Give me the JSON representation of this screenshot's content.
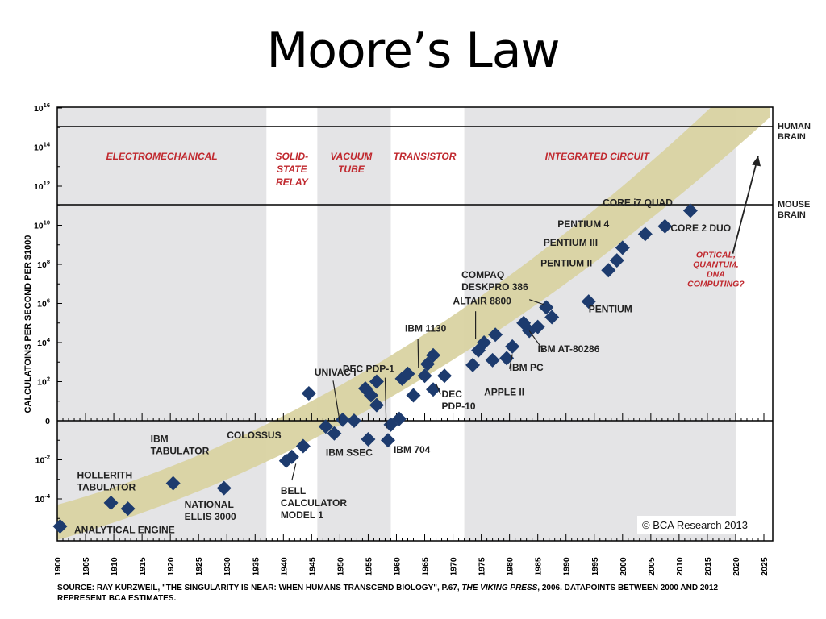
{
  "slide": {
    "title": "Moore’s Law"
  },
  "chart_data": {
    "type": "scatter",
    "ylabel": "CALCULATOINS PER SECOND PER $1000",
    "y_scale": "log",
    "xlim": [
      1900,
      2025
    ],
    "ylim_log10": [
      -6,
      16
    ],
    "x_ticks": [
      1900,
      1905,
      1910,
      1915,
      1920,
      1925,
      1930,
      1935,
      1940,
      1945,
      1950,
      1955,
      1960,
      1965,
      1970,
      1975,
      1980,
      1985,
      1990,
      1995,
      2000,
      2005,
      2010,
      2015,
      2020,
      2025
    ],
    "y_ticks": [
      {
        "exp": 16,
        "label": "10",
        "sup": "16"
      },
      {
        "exp": 14,
        "label": "10",
        "sup": "14"
      },
      {
        "exp": 12,
        "label": "10",
        "sup": "12"
      },
      {
        "exp": 10,
        "label": "10",
        "sup": "10"
      },
      {
        "exp": 8,
        "label": "10",
        "sup": "8"
      },
      {
        "exp": 6,
        "label": "10",
        "sup": "6"
      },
      {
        "exp": 4,
        "label": "10",
        "sup": "4"
      },
      {
        "exp": 2,
        "label": "10",
        "sup": "2"
      },
      {
        "exp": 0,
        "label": "0",
        "sup": ""
      },
      {
        "exp": -2,
        "label": "10",
        "sup": "-2"
      },
      {
        "exp": -4,
        "label": "10",
        "sup": "-4"
      }
    ],
    "eras": [
      {
        "name": "ELECTROMECHANICAL",
        "lines": [
          "ELECTROMECHANICAL"
        ],
        "from": 1900,
        "to": 1937,
        "shaded": true
      },
      {
        "name": "SOLID-STATE RELAY",
        "lines": [
          "SOLID-",
          "STATE",
          "RELAY"
        ],
        "from": 1937,
        "to": 1946,
        "shaded": false
      },
      {
        "name": "VACUUM TUBE",
        "lines": [
          "VACUUM",
          "TUBE"
        ],
        "from": 1946,
        "to": 1959,
        "shaded": true
      },
      {
        "name": "TRANSISTOR",
        "lines": [
          "TRANSISTOR"
        ],
        "from": 1959,
        "to": 1972,
        "shaded": false
      },
      {
        "name": "INTEGRATED CIRCUIT",
        "lines": [
          "INTEGRATED CIRCUIT"
        ],
        "from": 1972,
        "to": 2020,
        "shaded": true
      }
    ],
    "reference_lines": [
      {
        "name": "HUMAN BRAIN",
        "lines": [
          "HUMAN",
          "BRAIN"
        ],
        "log10": 15.05
      },
      {
        "name": "MOUSE BRAIN",
        "lines": [
          "MOUSE",
          "BRAIN"
        ],
        "log10": 11.05
      }
    ],
    "points": [
      {
        "x": 1900.5,
        "log10": -5.4
      },
      {
        "x": 1909.5,
        "log10": -4.2
      },
      {
        "x": 1912.5,
        "log10": -4.5
      },
      {
        "x": 1920.5,
        "log10": -3.2
      },
      {
        "x": 1929.5,
        "log10": -3.45
      },
      {
        "x": 1940.5,
        "log10": -2.05
      },
      {
        "x": 1941.5,
        "log10": -1.85
      },
      {
        "x": 1943.5,
        "log10": -1.3
      },
      {
        "x": 1944.5,
        "log10": 1.4
      },
      {
        "x": 1947.5,
        "log10": -0.3
      },
      {
        "x": 1949.0,
        "log10": -0.65
      },
      {
        "x": 1950.5,
        "log10": 0.05
      },
      {
        "x": 1952.5,
        "log10": 0.0
      },
      {
        "x": 1954.5,
        "log10": 1.65
      },
      {
        "x": 1955.0,
        "log10": -0.95
      },
      {
        "x": 1955.5,
        "log10": 1.3
      },
      {
        "x": 1956.5,
        "log10": 2.0
      },
      {
        "x": 1956.5,
        "log10": 0.8
      },
      {
        "x": 1958.5,
        "log10": -1.0
      },
      {
        "x": 1959.0,
        "log10": -0.2
      },
      {
        "x": 1960.5,
        "log10": 0.1
      },
      {
        "x": 1961.0,
        "log10": 2.15
      },
      {
        "x": 1962.0,
        "log10": 2.4
      },
      {
        "x": 1963.0,
        "log10": 1.3
      },
      {
        "x": 1965.0,
        "log10": 2.3
      },
      {
        "x": 1965.5,
        "log10": 2.9
      },
      {
        "x": 1966.5,
        "log10": 3.35
      },
      {
        "x": 1966.5,
        "log10": 1.6
      },
      {
        "x": 1968.5,
        "log10": 2.3
      },
      {
        "x": 1973.5,
        "log10": 2.85
      },
      {
        "x": 1974.5,
        "log10": 3.6
      },
      {
        "x": 1975.5,
        "log10": 4.0
      },
      {
        "x": 1977.0,
        "log10": 3.1
      },
      {
        "x": 1977.5,
        "log10": 4.4
      },
      {
        "x": 1979.5,
        "log10": 3.2
      },
      {
        "x": 1980.5,
        "log10": 3.8
      },
      {
        "x": 1982.5,
        "log10": 5.0
      },
      {
        "x": 1983.5,
        "log10": 4.6
      },
      {
        "x": 1985.0,
        "log10": 4.8
      },
      {
        "x": 1986.5,
        "log10": 5.8
      },
      {
        "x": 1987.5,
        "log10": 5.3
      },
      {
        "x": 1994.0,
        "log10": 6.1
      },
      {
        "x": 1997.5,
        "log10": 7.7
      },
      {
        "x": 1999.0,
        "log10": 8.2
      },
      {
        "x": 2000.0,
        "log10": 8.85
      },
      {
        "x": 2004.0,
        "log10": 9.55
      },
      {
        "x": 2007.5,
        "log10": 9.95
      },
      {
        "x": 2012.0,
        "log10": 10.75
      }
    ],
    "labels": [
      {
        "lines": [
          "ANALYTICAL ENGINE"
        ],
        "x": 1903.0,
        "log10": -5.75,
        "anchor": "start",
        "color": "dark"
      },
      {
        "lines": [
          "HOLLERITH",
          "TABULATOR"
        ],
        "x": 1903.5,
        "log10": -2.95,
        "anchor": "start",
        "color": "dark"
      },
      {
        "lines": [
          "IBM",
          "TABULATOR"
        ],
        "x": 1916.5,
        "log10": -1.1,
        "anchor": "start",
        "color": "dark"
      },
      {
        "lines": [
          "NATIONAL",
          "ELLIS 3000"
        ],
        "x": 1922.5,
        "log10": -4.45,
        "anchor": "start",
        "color": "dark"
      },
      {
        "lines": [
          "COLOSSUS"
        ],
        "x": 1930.0,
        "log10": -0.9,
        "anchor": "start",
        "color": "dark"
      },
      {
        "lines": [
          "BELL",
          "CALCULATOR",
          "MODEL 1"
        ],
        "x": 1939.5,
        "log10": -3.75,
        "anchor": "start",
        "color": "dark"
      },
      {
        "lines": [
          "UNIVAC I"
        ],
        "x": 1945.5,
        "log10": 2.3,
        "anchor": "start",
        "color": "dark"
      },
      {
        "lines": [
          "IBM SSEC"
        ],
        "x": 1947.5,
        "log10": -1.8,
        "anchor": "start",
        "color": "dark"
      },
      {
        "lines": [
          "DEC PDP-1"
        ],
        "x": 1950.5,
        "log10": 2.5,
        "anchor": "start",
        "color": "dark"
      },
      {
        "lines": [
          "IBM 704"
        ],
        "x": 1959.5,
        "log10": -1.65,
        "anchor": "start",
        "color": "dark"
      },
      {
        "lines": [
          "IBM 1130"
        ],
        "x": 1961.5,
        "log10": 4.55,
        "anchor": "start",
        "color": "dark"
      },
      {
        "lines": [
          "DEC",
          "PDP-10"
        ],
        "x": 1968.0,
        "log10": 1.2,
        "anchor": "start",
        "color": "dark"
      },
      {
        "lines": [
          "ALTAIR 8800"
        ],
        "x": 1970.0,
        "log10": 5.95,
        "anchor": "start",
        "color": "dark"
      },
      {
        "lines": [
          "COMPAQ",
          "DESKPRO 386"
        ],
        "x": 1971.5,
        "log10": 7.3,
        "anchor": "start",
        "color": "dark"
      },
      {
        "lines": [
          "IBM AT-80286"
        ],
        "x": 1985.0,
        "log10": 3.5,
        "anchor": "start",
        "color": "dark"
      },
      {
        "lines": [
          "IBM PC"
        ],
        "x": 1980.0,
        "log10": 2.55,
        "anchor": "start",
        "color": "dark"
      },
      {
        "lines": [
          "APPLE II"
        ],
        "x": 1975.5,
        "log10": 1.3,
        "anchor": "start",
        "color": "dark"
      },
      {
        "lines": [
          "PENTIUM"
        ],
        "x": 1994.0,
        "log10": 5.55,
        "anchor": "start",
        "color": "dark"
      },
      {
        "lines": [
          "PENTIUM II"
        ],
        "x": 1985.5,
        "log10": 7.9,
        "anchor": "start",
        "color": "dark"
      },
      {
        "lines": [
          "PENTIUM III"
        ],
        "x": 1986.0,
        "log10": 8.95,
        "anchor": "start",
        "color": "dark"
      },
      {
        "lines": [
          "PENTIUM 4"
        ],
        "x": 1988.5,
        "log10": 9.9,
        "anchor": "start",
        "color": "dark"
      },
      {
        "lines": [
          "CORE i7 QUAD"
        ],
        "x": 1996.5,
        "log10": 11.0,
        "anchor": "start",
        "color": "dark"
      },
      {
        "lines": [
          "CORE 2 DUO"
        ],
        "x": 2008.5,
        "log10": 9.7,
        "anchor": "start",
        "color": "dark"
      },
      {
        "lines": [
          "OPTICAL,",
          "QUANTUM,",
          "DNA",
          "COMPUTING?"
        ],
        "x": 2016.5,
        "log10": 8.35,
        "anchor": "middle",
        "color": "red"
      }
    ],
    "copyright": "© BCA Research 2013",
    "colors": {
      "band": "#d9d3a2",
      "era_shade": "#e4e4e6",
      "marker": "#1d3b6e",
      "era_text": "#c0282e",
      "label_text": "#222222",
      "axis": "#000000"
    }
  },
  "source": {
    "prefix": "SOURCE: RAY KURZWEIL, \"THE SINGULARITY IS NEAR: WHEN HUMANS TRANSCEND BIOLOGY\", P.67, ",
    "italic": "THE VIKING PRESS",
    "suffix": ", 2006. DATAPOINTS BETWEEN 2000 AND 2012 REPRESENT BCA ESTIMATES."
  }
}
